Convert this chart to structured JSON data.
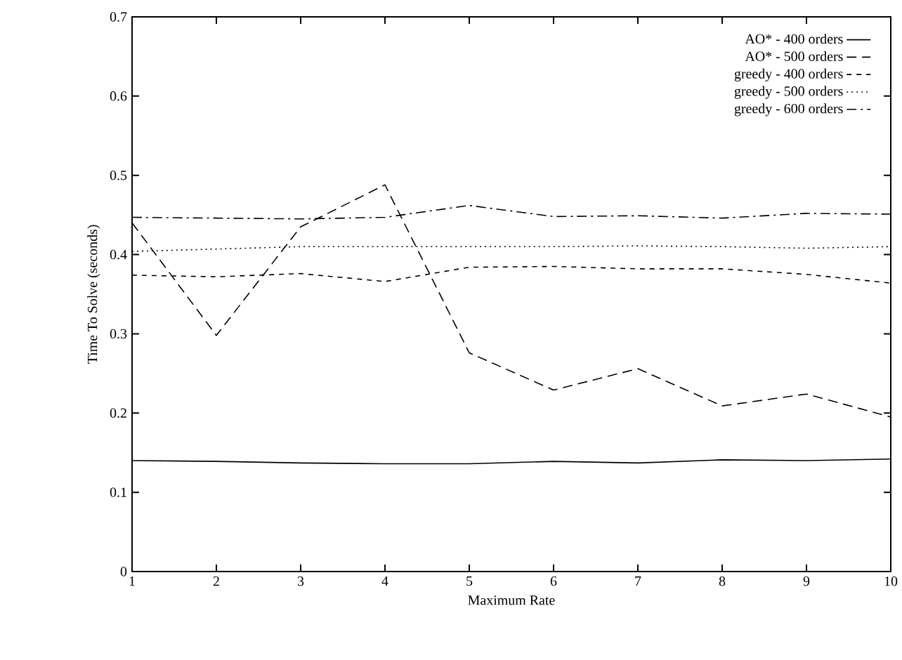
{
  "chart_data": {
    "type": "line",
    "xlabel": "Maximum Rate",
    "ylabel": "Time To Solve (seconds)",
    "x": [
      1,
      2,
      3,
      4,
      5,
      6,
      7,
      8,
      9,
      10
    ],
    "xlim": [
      1,
      10
    ],
    "xticks": [
      1,
      2,
      3,
      4,
      5,
      6,
      7,
      8,
      9,
      10
    ],
    "ylim": [
      0,
      0.7
    ],
    "yticks": [
      0,
      0.1,
      0.2,
      0.3,
      0.4,
      0.5,
      0.6,
      0.7
    ],
    "legend": "top right",
    "grid": false,
    "marker": "none",
    "series": [
      {
        "name": "AO* - 400 orders",
        "color": "#000000",
        "line_style": "solid",
        "values": [
          0.14,
          0.139,
          0.137,
          0.136,
          0.136,
          0.139,
          0.137,
          0.141,
          0.14,
          0.142
        ]
      },
      {
        "name": "AO* - 500 orders",
        "color": "#000000",
        "line_style": "dashed",
        "values": [
          0.44,
          0.298,
          0.435,
          0.488,
          0.276,
          0.229,
          0.256,
          0.209,
          0.224,
          0.195
        ]
      },
      {
        "name": "greedy - 400 orders",
        "color": "#000000",
        "line_style": "shortdashed",
        "values": [
          0.374,
          0.372,
          0.376,
          0.366,
          0.384,
          0.385,
          0.382,
          0.382,
          0.375,
          0.364
        ]
      },
      {
        "name": "greedy - 500 orders",
        "color": "#000000",
        "line_style": "dotted",
        "values": [
          0.404,
          0.407,
          0.41,
          0.41,
          0.41,
          0.41,
          0.411,
          0.41,
          0.408,
          0.41
        ]
      },
      {
        "name": "greedy - 600 orders",
        "color": "#000000",
        "line_style": "dashdot",
        "values": [
          0.447,
          0.446,
          0.445,
          0.447,
          0.462,
          0.448,
          0.449,
          0.446,
          0.452,
          0.451
        ]
      }
    ]
  }
}
